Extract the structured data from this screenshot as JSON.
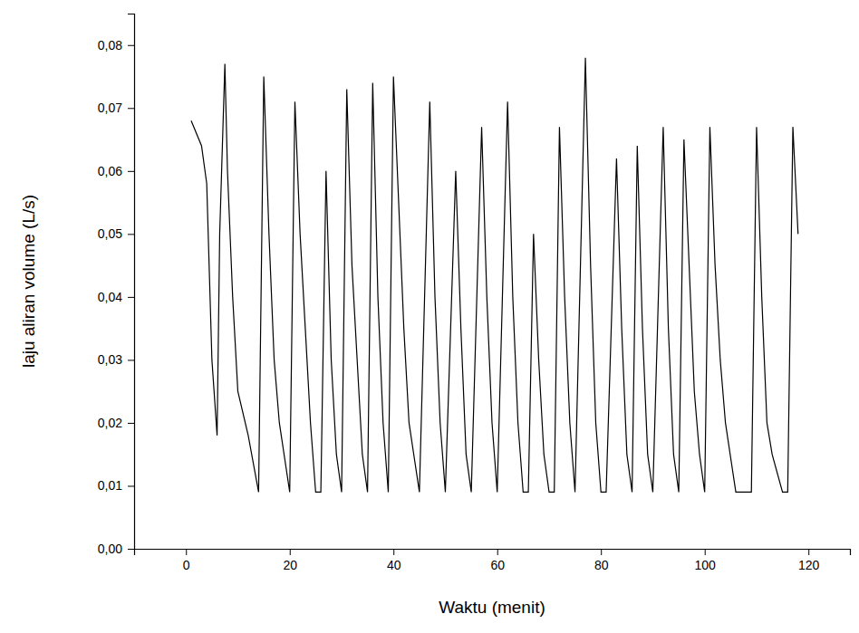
{
  "chart_data": {
    "type": "line",
    "x_label": "Waktu (menit)",
    "y_label": "laju aliran volume (L/s)",
    "xlim": [
      -10,
      128
    ],
    "ylim": [
      0,
      0.085
    ],
    "xticks": [
      0,
      20,
      40,
      60,
      80,
      100,
      120
    ],
    "yticks": [
      {
        "value": 0,
        "label": "0,00"
      },
      {
        "value": 0.01,
        "label": "0,01"
      },
      {
        "value": 0.02,
        "label": "0,02"
      },
      {
        "value": 0.03,
        "label": "0,03"
      },
      {
        "value": 0.04,
        "label": "0,04"
      },
      {
        "value": 0.05,
        "label": "0,05"
      },
      {
        "value": 0.06,
        "label": "0,06"
      },
      {
        "value": 0.07,
        "label": "0,07"
      },
      {
        "value": 0.08,
        "label": "0,08"
      }
    ],
    "grid": false,
    "series": [
      {
        "color": "#000000",
        "line_style": "solid",
        "x": [
          1,
          3,
          4,
          5,
          6,
          6.5,
          7.5,
          8,
          9,
          10,
          12,
          14,
          15,
          16,
          17,
          18,
          20,
          21,
          22,
          23,
          24,
          25,
          26,
          27,
          28,
          29,
          30,
          31,
          32,
          33,
          34,
          35,
          36,
          37,
          38,
          39,
          40,
          41,
          42,
          43,
          45,
          47,
          48,
          49,
          50,
          52,
          53,
          54,
          55,
          57,
          58,
          59,
          60,
          62,
          63,
          64,
          65,
          66,
          67,
          68,
          69,
          70,
          71,
          72,
          73,
          74,
          75,
          77,
          78,
          79,
          80,
          81,
          83,
          84,
          85,
          86,
          87,
          88,
          89,
          90,
          92,
          93,
          94,
          95,
          96,
          97,
          98,
          99,
          100,
          101,
          102,
          103,
          104,
          106,
          109,
          110,
          111,
          112,
          113,
          115,
          116,
          117,
          118
        ],
        "values": [
          0.068,
          0.064,
          0.058,
          0.03,
          0.018,
          0.05,
          0.077,
          0.06,
          0.04,
          0.025,
          0.018,
          0.009,
          0.075,
          0.05,
          0.03,
          0.02,
          0.009,
          0.071,
          0.05,
          0.035,
          0.02,
          0.009,
          0.009,
          0.06,
          0.03,
          0.015,
          0.009,
          0.073,
          0.045,
          0.03,
          0.015,
          0.009,
          0.074,
          0.04,
          0.02,
          0.009,
          0.075,
          0.055,
          0.035,
          0.02,
          0.009,
          0.071,
          0.04,
          0.02,
          0.009,
          0.06,
          0.035,
          0.015,
          0.009,
          0.067,
          0.04,
          0.02,
          0.009,
          0.071,
          0.04,
          0.02,
          0.009,
          0.009,
          0.05,
          0.03,
          0.015,
          0.009,
          0.009,
          0.067,
          0.04,
          0.02,
          0.009,
          0.078,
          0.045,
          0.02,
          0.009,
          0.009,
          0.062,
          0.035,
          0.015,
          0.009,
          0.064,
          0.035,
          0.015,
          0.009,
          0.067,
          0.035,
          0.015,
          0.009,
          0.065,
          0.045,
          0.025,
          0.015,
          0.009,
          0.067,
          0.045,
          0.03,
          0.02,
          0.009,
          0.009,
          0.067,
          0.04,
          0.02,
          0.015,
          0.009,
          0.009,
          0.067,
          0.05
        ]
      }
    ]
  }
}
